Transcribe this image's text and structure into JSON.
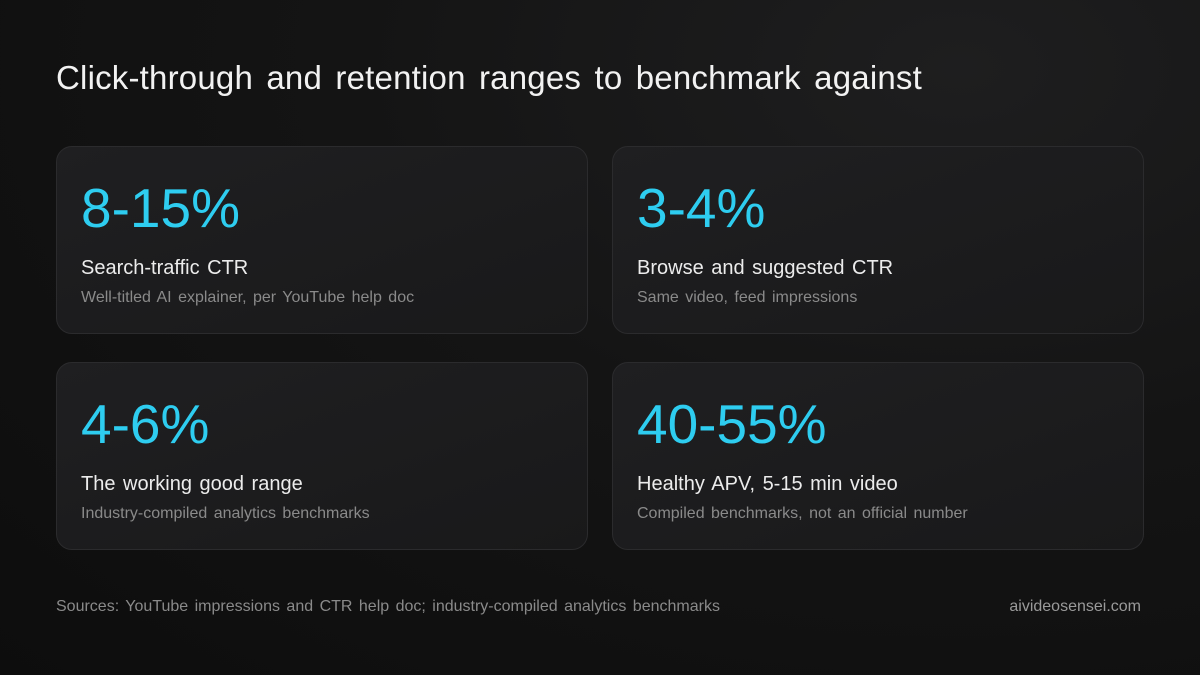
{
  "title": "Click-through and retention ranges to benchmark against",
  "accent_color": "#2ecdf0",
  "cards": [
    {
      "stat": "8-15%",
      "label": "Search-traffic CTR",
      "note": "Well-titled AI explainer, per YouTube help doc"
    },
    {
      "stat": "3-4%",
      "label": "Browse and suggested CTR",
      "note": "Same video, feed impressions"
    },
    {
      "stat": "4-6%",
      "label": "The working good range",
      "note": "Industry-compiled analytics benchmarks"
    },
    {
      "stat": "40-55%",
      "label": "Healthy APV, 5-15 min video",
      "note": "Compiled benchmarks, not an official number"
    }
  ],
  "footer": {
    "sources": "Sources: YouTube impressions and CTR help doc; industry-compiled analytics benchmarks",
    "site": "aivideosensei.com"
  }
}
